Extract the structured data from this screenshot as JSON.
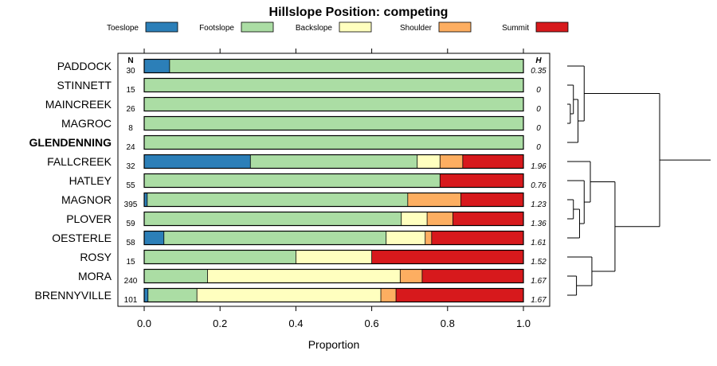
{
  "chart_data": {
    "type": "bar",
    "orientation": "horizontal",
    "stacked": true,
    "title": "Hillslope Position: competing",
    "xlabel": "Proportion",
    "xlim": [
      0,
      1
    ],
    "xticks": [
      "0.0",
      "0.2",
      "0.4",
      "0.6",
      "0.8",
      "1.0"
    ],
    "n_header": "N",
    "h_header": "H",
    "legend_position": "top",
    "series": [
      {
        "name": "Toeslope",
        "color": "#2c7fb8"
      },
      {
        "name": "Footslope",
        "color": "#abdda4"
      },
      {
        "name": "Backslope",
        "color": "#ffffbf"
      },
      {
        "name": "Shoulder",
        "color": "#fdae61"
      },
      {
        "name": "Summit",
        "color": "#d7191c"
      }
    ],
    "categories": [
      {
        "name": "PADDOCK",
        "bold": false,
        "n": "30",
        "h": "0.35",
        "values": [
          0.067,
          0.933,
          0,
          0,
          0
        ]
      },
      {
        "name": "STINNETT",
        "bold": false,
        "n": "15",
        "h": "0",
        "values": [
          0,
          1.0,
          0,
          0,
          0
        ]
      },
      {
        "name": "MAINCREEK",
        "bold": false,
        "n": "26",
        "h": "0",
        "values": [
          0,
          1.0,
          0,
          0,
          0
        ]
      },
      {
        "name": "MAGROC",
        "bold": false,
        "n": "8",
        "h": "0",
        "values": [
          0,
          1.0,
          0,
          0,
          0
        ]
      },
      {
        "name": "GLENDENNING",
        "bold": true,
        "n": "24",
        "h": "0",
        "values": [
          0,
          1.0,
          0,
          0,
          0
        ]
      },
      {
        "name": "FALLCREEK",
        "bold": false,
        "n": "32",
        "h": "1.96",
        "values": [
          0.28,
          0.44,
          0.06,
          0.06,
          0.16
        ]
      },
      {
        "name": "HATLEY",
        "bold": false,
        "n": "55",
        "h": "0.76",
        "values": [
          0,
          0.78,
          0,
          0,
          0.22
        ]
      },
      {
        "name": "MAGNOR",
        "bold": false,
        "n": "395",
        "h": "1.23",
        "values": [
          0.008,
          0.687,
          0,
          0.14,
          0.165
        ]
      },
      {
        "name": "PLOVER",
        "bold": false,
        "n": "59",
        "h": "1.36",
        "values": [
          0,
          0.678,
          0.068,
          0.068,
          0.186
        ]
      },
      {
        "name": "OESTERLE",
        "bold": false,
        "n": "58",
        "h": "1.61",
        "values": [
          0.052,
          0.586,
          0.103,
          0.017,
          0.242
        ]
      },
      {
        "name": "ROSY",
        "bold": false,
        "n": "15",
        "h": "1.52",
        "values": [
          0,
          0.4,
          0.2,
          0,
          0.4
        ]
      },
      {
        "name": "MORA",
        "bold": false,
        "n": "240",
        "h": "1.67",
        "values": [
          0,
          0.167,
          0.508,
          0.058,
          0.267
        ]
      },
      {
        "name": "BRENNYVILLE",
        "bold": false,
        "n": "101",
        "h": "1.67",
        "values": [
          0.01,
          0.129,
          0.485,
          0.04,
          0.336
        ]
      }
    ],
    "dendrogram": {
      "merges": [
        [
          -3,
          -4,
          0.1
        ],
        [
          -2,
          1,
          0.2
        ],
        [
          -5,
          2,
          0.35
        ],
        [
          -1,
          3,
          0.55
        ],
        [
          -8,
          -9,
          0.2
        ],
        [
          -10,
          5,
          0.4
        ],
        [
          -7,
          6,
          0.55
        ],
        [
          -6,
          7,
          0.75
        ],
        [
          -12,
          -13,
          0.3
        ],
        [
          -11,
          9,
          0.8
        ],
        [
          8,
          10,
          1.55
        ],
        [
          4,
          11,
          3.0
        ]
      ],
      "max_height": 3.0
    }
  }
}
